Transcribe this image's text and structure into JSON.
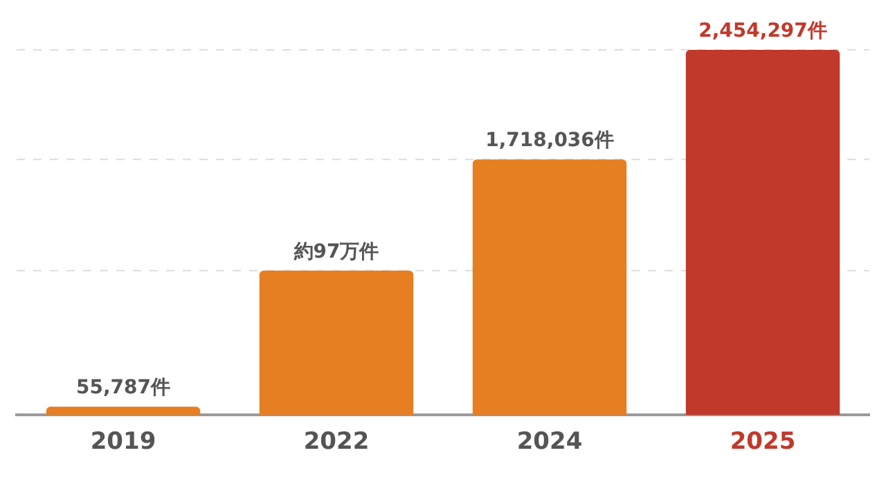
{
  "chart_data": {
    "type": "bar",
    "categories": [
      "2019",
      "2022",
      "2024",
      "2025"
    ],
    "values": [
      55787,
      970000,
      1718036,
      2454297
    ],
    "colors": [
      "#e67e22",
      "#e67e22",
      "#e67e22",
      "#c0392b"
    ],
    "value_labels": [
      "55,787件",
      "約97万件",
      "1,718,036件",
      "2,454,297件"
    ],
    "ref_lines": [
      {
        "axis": "y",
        "value": 970000,
        "color": "#dddddd",
        "line_style": "dashed"
      },
      {
        "axis": "y",
        "value": 1718036,
        "color": "#dddddd",
        "line_style": "dashed"
      },
      {
        "axis": "y",
        "value": 2454297,
        "color": "#dddddd",
        "line_style": "dashed"
      }
    ],
    "tick_labels": "x",
    "legend": false
  }
}
